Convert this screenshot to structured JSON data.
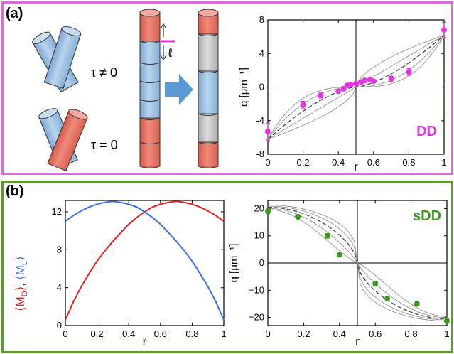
{
  "panel_a": {
    "label": "(a)",
    "tau_nonzero": "τ ≠ 0",
    "tau_zero": "τ = 0",
    "ell": "ℓ",
    "colors": {
      "blue": "#a8c8ea",
      "red": "#ea7e70",
      "gray": "#cccccc",
      "arrow": "#5b9bd5",
      "magenta": "#e335e3"
    }
  },
  "panel_b": {
    "label": "(b)",
    "ylabel_md": "⟨M",
    "ylabel_md_sub": "D",
    "ylabel_ml": "⟨M",
    "ylabel_ml_sub": "L",
    "ylabel_close": "⟩",
    "ylabel_sep": ","
  },
  "chart_data": [
    {
      "type": "scatter",
      "id": "DD",
      "tag": "DD",
      "xlabel": "r",
      "ylabel": "q  [μm⁻¹]",
      "xlim": [
        0,
        1
      ],
      "ylim": [
        -8,
        8
      ],
      "xticks": [
        "0",
        "0.2",
        "0.4",
        "0.6",
        "0.8",
        "1"
      ],
      "yticks": [
        "-8",
        "-4",
        "0",
        "4",
        "8"
      ],
      "marker_color": "#e335e3",
      "x": [
        0.0,
        0.2,
        0.3,
        0.4,
        0.43,
        0.45,
        0.47,
        0.5,
        0.53,
        0.55,
        0.58,
        0.6,
        0.7,
        0.8,
        1.0
      ],
      "y": [
        -5.3,
        -2.1,
        -1.0,
        -0.5,
        -0.2,
        0.2,
        0.3,
        0.4,
        0.6,
        0.8,
        0.9,
        0.7,
        1.0,
        1.8,
        6.8
      ],
      "err": [
        1.0,
        0.4,
        0.3,
        0.2,
        0.15,
        0.15,
        0.15,
        0.15,
        0.15,
        0.15,
        0.15,
        0.2,
        0.3,
        0.4,
        0.9
      ],
      "cross": {
        "x": 0.5,
        "y": 0
      }
    },
    {
      "type": "line",
      "id": "MD_ML",
      "xlabel": "r",
      "xlim": [
        0,
        1
      ],
      "ylim": [
        0,
        13.2
      ],
      "xticks": [
        "0",
        "0.2",
        "0.4",
        "0.6",
        "0.8",
        "1"
      ],
      "yticks": [
        "0",
        "4",
        "8",
        "12"
      ],
      "series": [
        {
          "id": "MD",
          "color": "#e8201c",
          "x": [
            0,
            0.05,
            0.1,
            0.15,
            0.2,
            0.25,
            0.3,
            0.35,
            0.4,
            0.45,
            0.5,
            0.55,
            0.6,
            0.65,
            0.7,
            0.75,
            0.8,
            0.85,
            0.9,
            0.95,
            1.0
          ],
          "y": [
            0.6,
            2.5,
            4.1,
            5.5,
            6.8,
            7.9,
            8.9,
            9.8,
            10.7,
            11.4,
            12.0,
            12.5,
            12.8,
            13.0,
            13.1,
            13.0,
            12.8,
            12.5,
            12.1,
            11.6,
            11.0
          ]
        },
        {
          "id": "ML",
          "color": "#3b6ee8",
          "x": [
            0,
            0.05,
            0.1,
            0.15,
            0.2,
            0.25,
            0.3,
            0.35,
            0.4,
            0.45,
            0.5,
            0.55,
            0.6,
            0.65,
            0.7,
            0.75,
            0.8,
            0.85,
            0.9,
            0.95,
            1.0
          ],
          "y": [
            11.0,
            11.6,
            12.1,
            12.5,
            12.8,
            13.0,
            13.1,
            13.0,
            12.8,
            12.5,
            12.0,
            11.4,
            10.7,
            9.8,
            8.9,
            7.9,
            6.8,
            5.5,
            4.1,
            2.5,
            0.6
          ]
        }
      ]
    },
    {
      "type": "scatter",
      "id": "sDD",
      "tag": "sDD",
      "xlabel": "r",
      "ylabel": "q  [μm⁻¹]",
      "xlim": [
        0,
        1
      ],
      "ylim": [
        -23,
        23
      ],
      "xticks": [
        "0",
        "0.2",
        "0.4",
        "0.6",
        "0.8",
        "1"
      ],
      "yticks": [
        "20",
        "10",
        "0",
        "−10",
        "−20"
      ],
      "marker_color": "#3e9a1e",
      "x": [
        0.0,
        0.167,
        0.333,
        0.4,
        0.6,
        0.667,
        0.833,
        1.0
      ],
      "y": [
        19.0,
        17.0,
        10.0,
        3.0,
        -7.5,
        -13.0,
        -15.0,
        -21.3
      ],
      "err": [
        0.8,
        0.8,
        0.8,
        0.5,
        0.8,
        0.8,
        0.8,
        0.8
      ],
      "cross": {
        "x": 0.5,
        "y": 0
      }
    }
  ]
}
